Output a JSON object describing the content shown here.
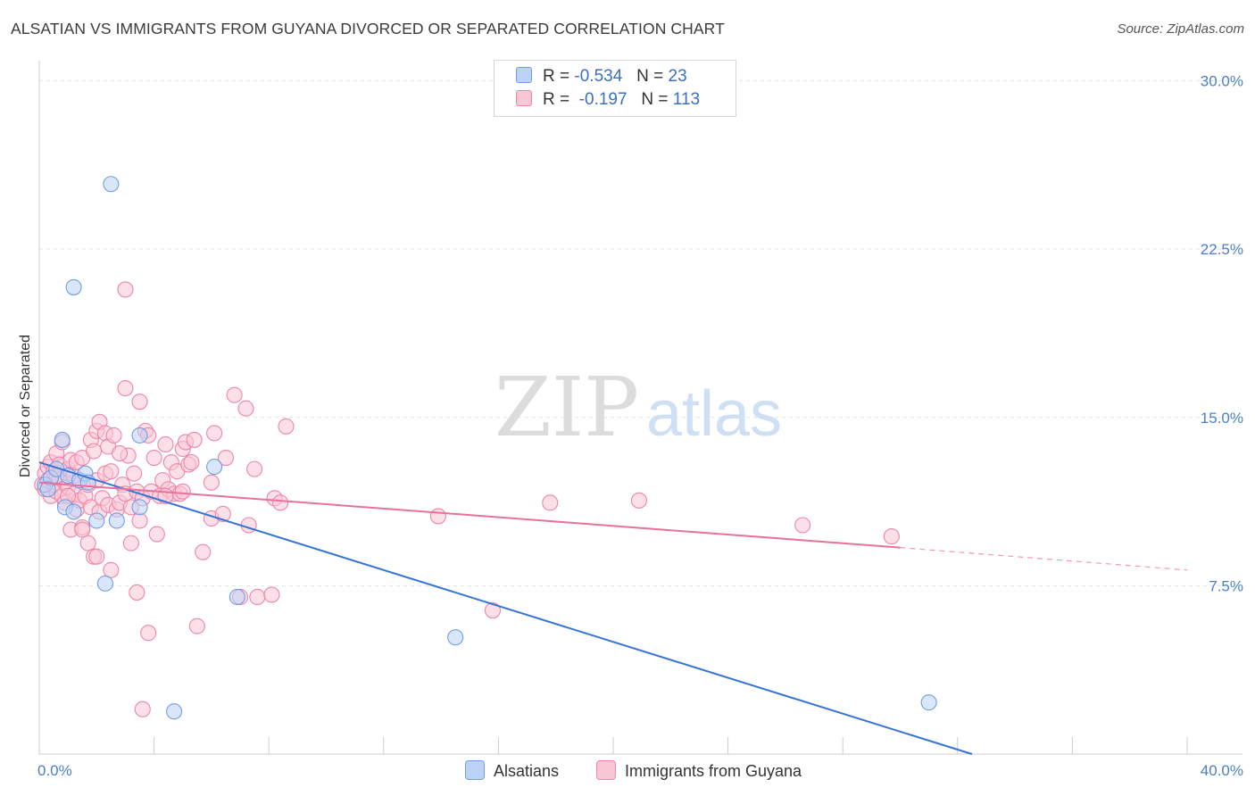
{
  "title": "ALSATIAN VS IMMIGRANTS FROM GUYANA DIVORCED OR SEPARATED CORRELATION CHART",
  "source": "Source: ZipAtlas.com",
  "watermark": {
    "zip": "ZIP",
    "atlas": "atlas"
  },
  "legend": {
    "r_label": "R =",
    "n_label": "N =",
    "series": [
      {
        "r": "-0.534",
        "n": "23",
        "color": "#6f9de8",
        "fill": "#bcd3f5"
      },
      {
        "r": "-0.197",
        "n": "113",
        "color": "#ee85a8",
        "fill": "#f9c6d6"
      }
    ]
  },
  "bottom_legend": [
    "Alsatians",
    "Immigrants from Guyana"
  ],
  "chart_data": {
    "type": "scatter",
    "ylabel": "Divorced or Separated",
    "xlabel": "",
    "xlim": [
      0,
      40
    ],
    "ylim": [
      0,
      30.5
    ],
    "x_tick_labels": [
      "0.0%",
      "40.0%"
    ],
    "y_ticks": [
      7.5,
      15.0,
      22.5,
      30.0
    ],
    "y_tick_labels": [
      "7.5%",
      "15.0%",
      "22.5%",
      "30.0%"
    ],
    "grid": true,
    "series": [
      {
        "name": "Alsatians",
        "color": "#6f9de8",
        "trend": {
          "x": [
            0.0,
            32.5
          ],
          "y": [
            13.0,
            0.0
          ]
        },
        "points": [
          [
            0.2,
            12.0
          ],
          [
            0.4,
            12.3
          ],
          [
            0.6,
            12.7
          ],
          [
            0.8,
            14.0
          ],
          [
            0.9,
            11.0
          ],
          [
            1.0,
            12.4
          ],
          [
            1.2,
            10.8
          ],
          [
            1.4,
            12.2
          ],
          [
            1.6,
            12.5
          ],
          [
            1.7,
            12.1
          ],
          [
            2.0,
            10.4
          ],
          [
            2.3,
            7.6
          ],
          [
            2.5,
            25.4
          ],
          [
            2.7,
            10.4
          ],
          [
            3.5,
            11.0
          ],
          [
            3.5,
            14.2
          ],
          [
            4.7,
            1.9
          ],
          [
            6.1,
            12.8
          ],
          [
            6.9,
            7.0
          ],
          [
            14.5,
            5.2
          ],
          [
            1.2,
            20.8
          ],
          [
            31.0,
            2.3
          ],
          [
            0.3,
            11.8
          ]
        ]
      },
      {
        "name": "Immigrants from Guyana",
        "color": "#ee85a8",
        "trend": {
          "x": [
            0.0,
            30.0
          ],
          "y": [
            12.1,
            9.2
          ]
        },
        "trend_ext": {
          "x": [
            30.0,
            40.0
          ],
          "y": [
            9.2,
            8.2
          ]
        },
        "points": [
          [
            0.1,
            12.0
          ],
          [
            0.2,
            12.5
          ],
          [
            0.2,
            11.8
          ],
          [
            0.3,
            12.8
          ],
          [
            0.3,
            12.2
          ],
          [
            0.4,
            13.0
          ],
          [
            0.4,
            11.5
          ],
          [
            0.5,
            12.6
          ],
          [
            0.5,
            12.0
          ],
          [
            0.6,
            13.4
          ],
          [
            0.6,
            11.7
          ],
          [
            0.7,
            12.3
          ],
          [
            0.7,
            12.9
          ],
          [
            0.8,
            11.5
          ],
          [
            0.8,
            13.9
          ],
          [
            0.9,
            12.1
          ],
          [
            0.9,
            11.2
          ],
          [
            1.0,
            12.7
          ],
          [
            1.0,
            11.9
          ],
          [
            1.1,
            13.1
          ],
          [
            1.1,
            10.0
          ],
          [
            1.2,
            12.4
          ],
          [
            1.2,
            11.6
          ],
          [
            1.3,
            13.0
          ],
          [
            1.3,
            10.9
          ],
          [
            1.4,
            12.2
          ],
          [
            1.4,
            11.3
          ],
          [
            1.5,
            13.2
          ],
          [
            1.5,
            10.1
          ],
          [
            1.6,
            11.5
          ],
          [
            1.7,
            12.0
          ],
          [
            1.7,
            9.4
          ],
          [
            1.8,
            14.0
          ],
          [
            1.8,
            11.0
          ],
          [
            1.9,
            13.5
          ],
          [
            1.9,
            8.8
          ],
          [
            2.0,
            14.4
          ],
          [
            2.0,
            12.2
          ],
          [
            2.1,
            14.8
          ],
          [
            2.1,
            10.8
          ],
          [
            2.2,
            11.4
          ],
          [
            2.3,
            14.3
          ],
          [
            2.3,
            12.5
          ],
          [
            2.4,
            13.7
          ],
          [
            2.4,
            11.1
          ],
          [
            2.5,
            8.2
          ],
          [
            2.5,
            12.6
          ],
          [
            2.6,
            14.2
          ],
          [
            2.7,
            10.9
          ],
          [
            2.8,
            11.2
          ],
          [
            2.9,
            12.0
          ],
          [
            3.0,
            16.3
          ],
          [
            3.0,
            11.6
          ],
          [
            3.1,
            13.3
          ],
          [
            3.2,
            9.4
          ],
          [
            3.2,
            11.0
          ],
          [
            3.3,
            12.5
          ],
          [
            3.4,
            7.2
          ],
          [
            3.4,
            11.7
          ],
          [
            3.5,
            15.7
          ],
          [
            3.5,
            10.4
          ],
          [
            3.6,
            11.4
          ],
          [
            3.7,
            14.4
          ],
          [
            3.8,
            14.2
          ],
          [
            3.9,
            11.7
          ],
          [
            4.0,
            13.2
          ],
          [
            4.1,
            9.8
          ],
          [
            4.2,
            11.5
          ],
          [
            4.3,
            12.2
          ],
          [
            4.4,
            13.8
          ],
          [
            4.5,
            11.8
          ],
          [
            4.6,
            13.0
          ],
          [
            4.7,
            11.6
          ],
          [
            4.8,
            12.6
          ],
          [
            4.9,
            11.6
          ],
          [
            5.0,
            13.6
          ],
          [
            5.1,
            13.9
          ],
          [
            5.2,
            12.9
          ],
          [
            5.3,
            13.0
          ],
          [
            5.4,
            14.0
          ],
          [
            5.5,
            5.7
          ],
          [
            5.7,
            9.0
          ],
          [
            6.0,
            10.5
          ],
          [
            6.0,
            12.1
          ],
          [
            6.1,
            14.3
          ],
          [
            6.4,
            10.7
          ],
          [
            6.5,
            13.2
          ],
          [
            6.8,
            16.0
          ],
          [
            7.0,
            7.0
          ],
          [
            7.2,
            15.4
          ],
          [
            7.3,
            10.2
          ],
          [
            7.5,
            12.7
          ],
          [
            7.6,
            7.0
          ],
          [
            8.1,
            7.1
          ],
          [
            8.2,
            11.4
          ],
          [
            8.4,
            11.2
          ],
          [
            8.6,
            14.6
          ],
          [
            13.9,
            10.6
          ],
          [
            15.8,
            6.4
          ],
          [
            17.8,
            11.2
          ],
          [
            20.9,
            11.3
          ],
          [
            26.6,
            10.2
          ],
          [
            29.7,
            9.7
          ],
          [
            3.0,
            20.7
          ],
          [
            3.6,
            2.0
          ],
          [
            3.8,
            5.4
          ],
          [
            2.0,
            8.8
          ],
          [
            1.5,
            10.0
          ],
          [
            4.4,
            11.5
          ],
          [
            5.0,
            11.7
          ],
          [
            1.0,
            11.5
          ],
          [
            0.6,
            12.4
          ],
          [
            2.8,
            13.4
          ]
        ]
      }
    ]
  }
}
